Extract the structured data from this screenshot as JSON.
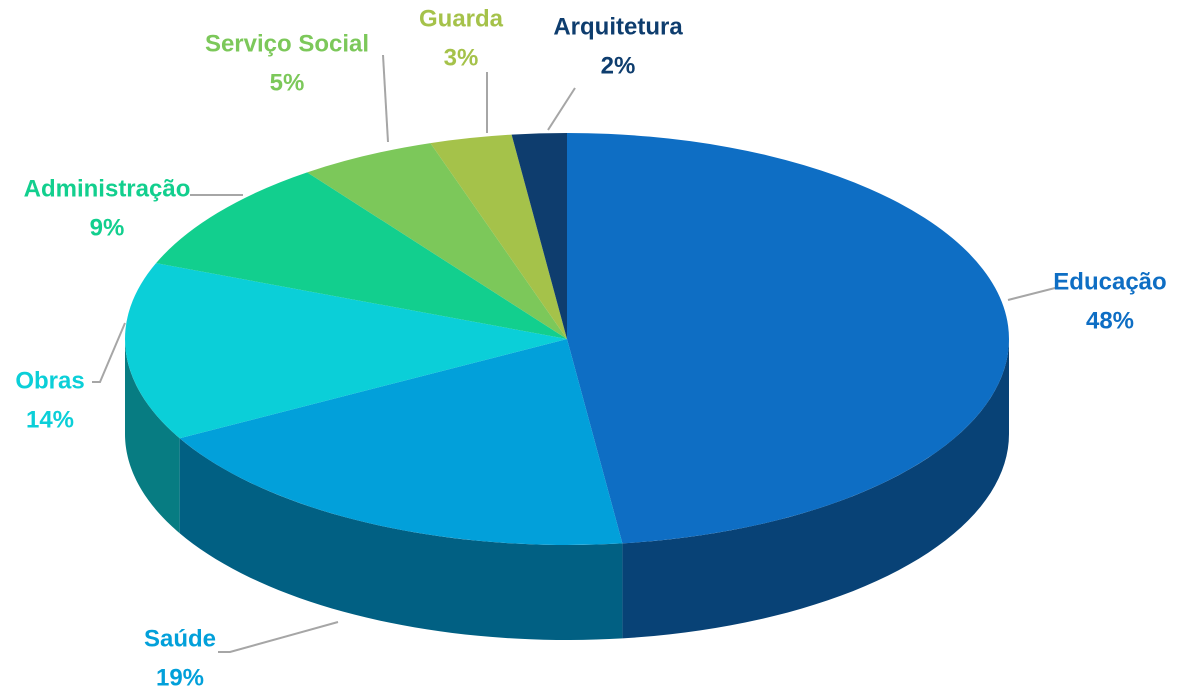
{
  "chart_data": {
    "type": "pie",
    "categories": [
      "Educação",
      "Saúde",
      "Obras",
      "Administração",
      "Serviço Social",
      "Guarda",
      "Arquitetura"
    ],
    "values": [
      48,
      19,
      14,
      9,
      5,
      3,
      2
    ],
    "value_labels": [
      "48%",
      "19%",
      "14%",
      "9%",
      "5%",
      "3%",
      "2%"
    ],
    "colors": [
      "#0e6ec4",
      "#02a0da",
      "#0bcfd8",
      "#12cf8e",
      "#7cc85a",
      "#a5c24a",
      "#0e3d6e"
    ]
  }
}
